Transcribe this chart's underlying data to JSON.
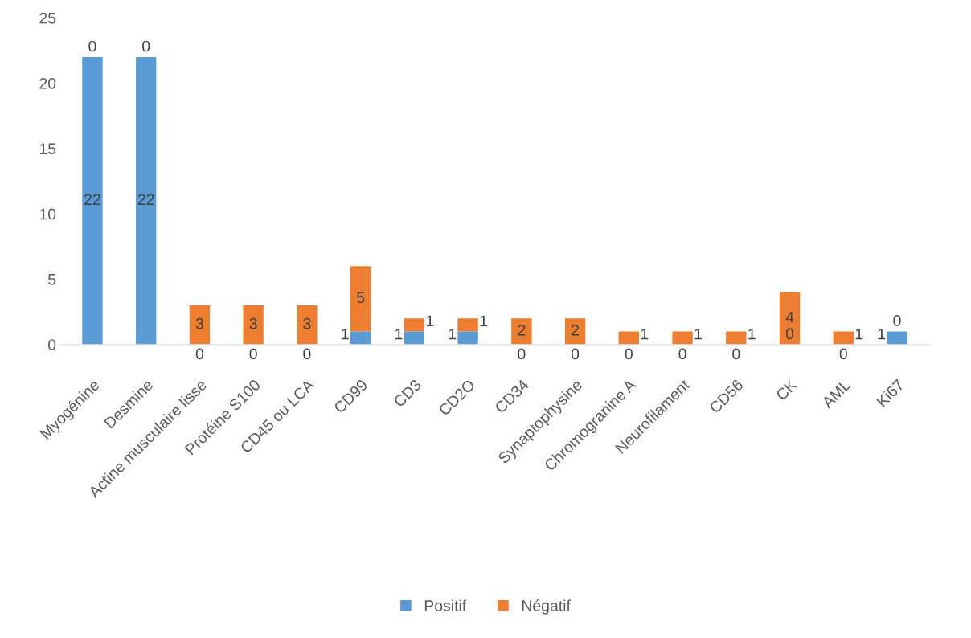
{
  "chart_data": {
    "type": "bar",
    "stacked": true,
    "categories": [
      "Myogénine",
      "Desmine",
      "Actine musculaire lisse",
      "Protéine S100",
      "CD45 ou LCA",
      "CD99",
      "CD3",
      "CD2O",
      "CD34",
      "Synaptophysine",
      "Chromogranine A",
      "Neurofilament",
      "CD56",
      "CK",
      "AML",
      "Ki67"
    ],
    "series": [
      {
        "name": "Positif",
        "color": "#5b9bd5",
        "values": [
          22,
          22,
          0,
          0,
          0,
          1,
          1,
          1,
          0,
          0,
          0,
          0,
          0,
          0,
          0,
          1
        ]
      },
      {
        "name": "Négatif",
        "color": "#ed7d31",
        "values": [
          0,
          0,
          3,
          3,
          3,
          5,
          1,
          1,
          2,
          2,
          1,
          1,
          1,
          4,
          1,
          0
        ]
      }
    ],
    "ylim": [
      0,
      25
    ],
    "yticks": [
      0,
      5,
      10,
      15,
      20,
      25
    ],
    "grid": false,
    "legend": "bottom",
    "data_labels": true
  }
}
